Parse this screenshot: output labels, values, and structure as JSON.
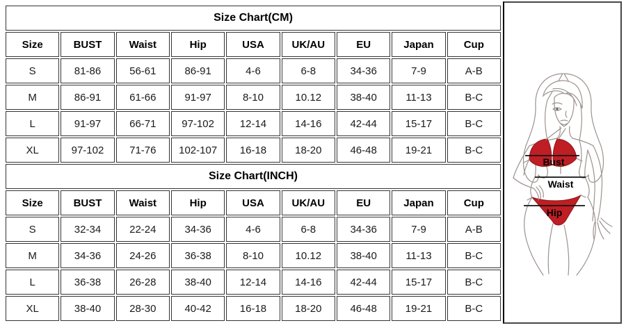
{
  "tables": [
    {
      "title": "Size Chart(CM)",
      "headers": [
        "Size",
        "BUST",
        "Waist",
        "Hip",
        "USA",
        "UK/AU",
        "EU",
        "Japan",
        "Cup"
      ],
      "rows": [
        [
          "S",
          "81-86",
          "56-61",
          "86-91",
          "4-6",
          "6-8",
          "34-36",
          "7-9",
          "A-B"
        ],
        [
          "M",
          "86-91",
          "61-66",
          "91-97",
          "8-10",
          "10.12",
          "38-40",
          "11-13",
          "B-C"
        ],
        [
          "L",
          "91-97",
          "66-71",
          "97-102",
          "12-14",
          "14-16",
          "42-44",
          "15-17",
          "B-C"
        ],
        [
          "XL",
          "97-102",
          "71-76",
          "102-107",
          "16-18",
          "18-20",
          "46-48",
          "19-21",
          "B-C"
        ]
      ]
    },
    {
      "title": "Size Chart(INCH)",
      "headers": [
        "Size",
        "BUST",
        "Waist",
        "Hip",
        "USA",
        "UK/AU",
        "EU",
        "Japan",
        "Cup"
      ],
      "rows": [
        [
          "S",
          "32-34",
          "22-24",
          "34-36",
          "4-6",
          "6-8",
          "34-36",
          "7-9",
          "A-B"
        ],
        [
          "M",
          "34-36",
          "24-26",
          "36-38",
          "8-10",
          "10.12",
          "38-40",
          "11-13",
          "B-C"
        ],
        [
          "L",
          "36-38",
          "26-28",
          "38-40",
          "12-14",
          "14-16",
          "42-44",
          "15-17",
          "B-C"
        ],
        [
          "XL",
          "38-40",
          "28-30",
          "40-42",
          "16-18",
          "18-20",
          "46-48",
          "19-21",
          "B-C"
        ]
      ]
    }
  ],
  "figure": {
    "labels": {
      "bust": "Bust",
      "waist": "Waist",
      "hip": "Hip"
    },
    "colors": {
      "bikini_red": "#bf1e24",
      "line_art": "#9b928d",
      "measure_line": "#111111",
      "table_border": "#333333"
    }
  }
}
